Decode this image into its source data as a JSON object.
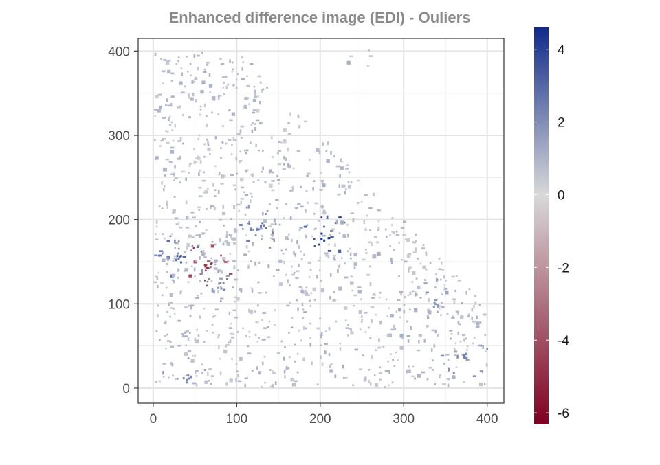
{
  "chart_data": {
    "type": "heatmap",
    "title": "Enhanced difference image (EDI) - Ouliers",
    "xlabel": "",
    "ylabel": "",
    "xlim": [
      -18,
      420
    ],
    "ylim": [
      -18,
      415
    ],
    "x_ticks": [
      0,
      100,
      200,
      300,
      400
    ],
    "y_ticks": [
      0,
      100,
      200,
      300,
      400
    ],
    "x_tick_labels": [
      "0",
      "100",
      "200",
      "300",
      "400"
    ],
    "y_tick_labels": [
      "0",
      "100",
      "200",
      "300",
      "400"
    ],
    "grid": true,
    "panel_border": true,
    "colorbar": {
      "min": -6.3,
      "max": 4.6,
      "ticks": [
        4,
        2,
        0,
        -2,
        -4,
        -6
      ],
      "tick_labels": [
        "4",
        "2",
        "0",
        "-2",
        "-4",
        "-6"
      ],
      "low_color": "#7f0020",
      "mid_color": "#d9d9d9",
      "high_color": "#102a8a",
      "placement": "right"
    },
    "title_color": "#8a8a8a",
    "data_extent": {
      "x": [
        0,
        400
      ],
      "y": [
        0,
        400
      ]
    },
    "outlier_clusters": [
      {
        "x": 130,
        "y": 190,
        "value": 2.6
      },
      {
        "x": 205,
        "y": 178,
        "value": 4.2
      },
      {
        "x": 80,
        "y": 120,
        "value": 2.0
      },
      {
        "x": 340,
        "y": 100,
        "value": 1.8
      },
      {
        "x": 370,
        "y": 38,
        "value": 2.4
      },
      {
        "x": 40,
        "y": 10,
        "value": 2.2
      },
      {
        "x": 65,
        "y": 145,
        "value": -4.8
      },
      {
        "x": 28,
        "y": 152,
        "value": 3.0
      }
    ]
  }
}
